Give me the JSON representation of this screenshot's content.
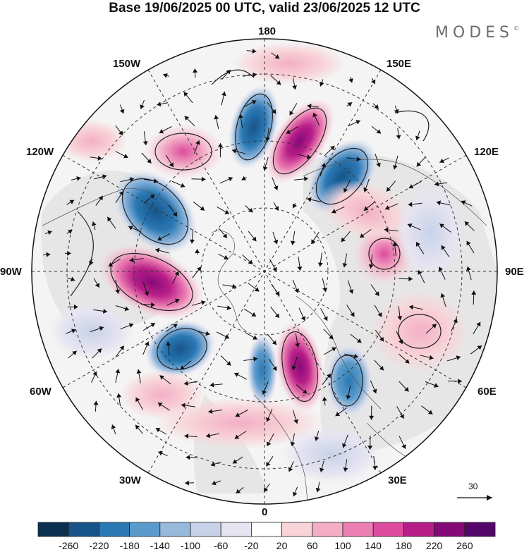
{
  "title": "Base 19/06/2025 00 UTC, valid 23/06/2025 12 UTC",
  "logo": "MODES",
  "logo_mark": "©",
  "longitude_labels": {
    "lon_180": "180",
    "lon_150e": "150E",
    "lon_120e": "120E",
    "lon_90e": "90E",
    "lon_60e": "60E",
    "lon_30e": "30E",
    "lon_0": "0",
    "lon_30w": "30W",
    "lon_60w": "60W",
    "lon_90w": "90W",
    "lon_120w": "120W",
    "lon_150w": "150W"
  },
  "vector_scale_label": "30",
  "colorbar": {
    "ticks": [
      "-260",
      "-220",
      "-180",
      "-140",
      "-100",
      "-60",
      "-20",
      "20",
      "60",
      "100",
      "140",
      "180",
      "220",
      "260"
    ],
    "colors": [
      "#0a2f4f",
      "#17548a",
      "#2a78b4",
      "#5b9bcb",
      "#96b9dc",
      "#c7d2e8",
      "#e7e4f1",
      "#ffffff",
      "#f8d3d8",
      "#f3aec6",
      "#ec7fb2",
      "#dc4b9d",
      "#b81e88",
      "#850a78",
      "#55066b"
    ]
  },
  "colors": {
    "background": "#ffffff",
    "land_fill": "#e9e9e9",
    "negative_anomaly": "#2a78b4",
    "positive_anomaly": "#dc4b9d"
  }
}
